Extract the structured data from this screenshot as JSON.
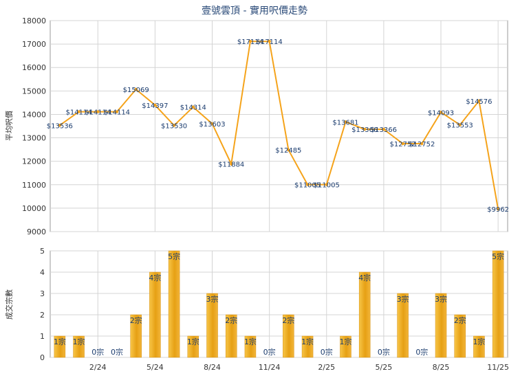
{
  "chart_data": [
    {
      "type": "line",
      "title": "壹號雲頂 - 實用呎價走勢",
      "xlabel": "",
      "ylabel": "平均呎價",
      "ylim": [
        9000,
        18000
      ],
      "yticks": [
        "9000",
        "10000",
        "11000",
        "12000",
        "13000",
        "14000",
        "15000",
        "16000",
        "17000",
        "18000"
      ],
      "grid": true,
      "color": "#f5a31a",
      "series": [
        {
          "values": [
            13536,
            14114,
            14114,
            14114,
            15069,
            14397,
            13530,
            14314,
            13603,
            11884,
            17114,
            17114,
            12485,
            11005,
            11005,
            13681,
            13366,
            13366,
            12752,
            12752,
            14093,
            13553,
            14576,
            9962
          ],
          "labels": [
            "$13536",
            "$14114",
            "$14114",
            "$14114",
            "$15069",
            "$14397",
            "$13530",
            "$14314",
            "$13603",
            "$11884",
            "$17114",
            "$17114",
            "$12485",
            "$11005",
            "$11005",
            "$13681",
            "$13366",
            "$13366",
            "$12752",
            "$12752",
            "$14093",
            "$13553",
            "$14576",
            "$9962"
          ]
        }
      ]
    },
    {
      "type": "bar",
      "title": "",
      "xlabel": "",
      "ylabel": "成交宗數",
      "ylim": [
        0,
        5
      ],
      "yticks": [
        "0",
        "1",
        "2",
        "3",
        "4",
        "5"
      ],
      "grid": true,
      "color": "#f0a820",
      "categories_shown": [
        "2/24",
        "5/24",
        "8/24",
        "11/24",
        "2/25",
        "5/25",
        "8/25",
        "11/25"
      ],
      "values": [
        1,
        1,
        0,
        0,
        2,
        4,
        5,
        1,
        3,
        2,
        1,
        0,
        2,
        1,
        0,
        1,
        4,
        0,
        3,
        0,
        3,
        2,
        1,
        5
      ],
      "labels": [
        "1宗",
        "1宗",
        "0宗",
        "0宗",
        "2宗",
        "4宗",
        "5宗",
        "1宗",
        "3宗",
        "2宗",
        "1宗",
        "0宗",
        "2宗",
        "1宗",
        "0宗",
        "1宗",
        "4宗",
        "0宗",
        "3宗",
        "0宗",
        "3宗",
        "2宗",
        "1宗",
        "5宗"
      ]
    }
  ]
}
